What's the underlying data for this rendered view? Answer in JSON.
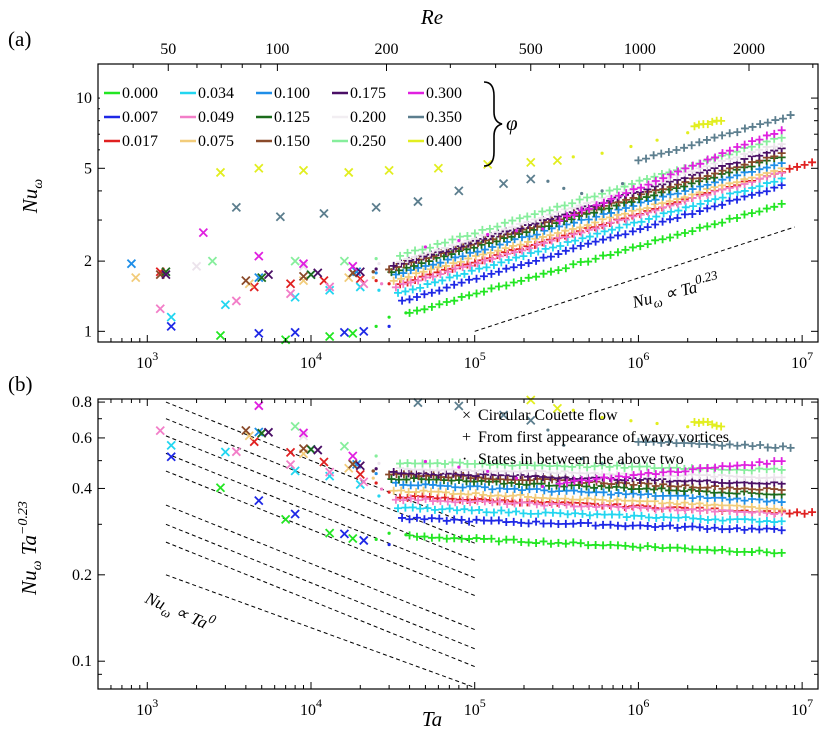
{
  "chart_data": [
    {
      "panel": "(a)",
      "type": "scatter",
      "xlabel_top": "Re",
      "ylabel": "Nu_ω",
      "xscale": "log",
      "yscale": "log",
      "xlim": [
        500,
        12500000
      ],
      "ylim": [
        0.9,
        14
      ],
      "x_top_ticks": [
        50,
        100,
        200,
        500,
        1000,
        2000
      ],
      "x_ticks": [
        1000,
        10000,
        100000,
        1000000,
        10000000
      ],
      "y_ticks": [
        1,
        2,
        5,
        10
      ],
      "legend": {
        "placement": "top-left",
        "entries": [
          {
            "label": "0.000",
            "color": "#22e622"
          },
          {
            "label": "0.034",
            "color": "#22d6f0"
          },
          {
            "label": "0.100",
            "color": "#1e8ee8"
          },
          {
            "label": "0.175",
            "color": "#4a0f66"
          },
          {
            "label": "0.300",
            "color": "#e020e0"
          },
          {
            "label": "0.007",
            "color": "#1e28e6"
          },
          {
            "label": "0.049",
            "color": "#f27ec8"
          },
          {
            "label": "0.125",
            "color": "#1b6b1b"
          },
          {
            "label": "0.200",
            "color": "#f2eef2"
          },
          {
            "label": "0.350",
            "color": "#5c7e8e"
          },
          {
            "label": "0.017",
            "color": "#e02020"
          },
          {
            "label": "0.075",
            "color": "#f2cc7a"
          },
          {
            "label": "0.150",
            "color": "#8a4a2a"
          },
          {
            "label": "0.250",
            "color": "#86ee9c"
          },
          {
            "label": "0.400",
            "color": "#e2ee20"
          }
        ],
        "brace_label": "φ"
      },
      "reference_line": {
        "label_base": "Nu",
        "label_sub": "ω",
        "label_mid": " ∝ Ta",
        "label_sup": "0.23",
        "x": [
          100000,
          9000000
        ],
        "y": [
          1.0,
          2.8
        ]
      },
      "series": [
        {
          "phi": "0.000",
          "color": "#22e622",
          "cc": [
            [
              2800,
              0.96
            ],
            [
              7000,
              0.92
            ],
            [
              13000,
              0.95
            ],
            [
              18000,
              0.98
            ]
          ],
          "between": [
            [
              25000,
              1.05
            ],
            [
              30000,
              1.15
            ],
            [
              38000,
              1.2
            ]
          ],
          "wavy_x": [
            40000,
            7500000
          ],
          "wavy_y": [
            1.2,
            3.5
          ]
        },
        {
          "phi": "0.007",
          "color": "#1e28e6",
          "cc": [
            [
              1400,
              1.05
            ],
            [
              4800,
              0.98
            ],
            [
              8000,
              0.99
            ],
            [
              16000,
              0.99
            ],
            [
              21000,
              1.0
            ]
          ],
          "between": [
            [
              30000,
              1.05
            ]
          ],
          "wavy_x": [
            36000,
            7500000
          ],
          "wavy_y": [
            1.35,
            4.2
          ]
        },
        {
          "phi": "0.017",
          "color": "#e02020",
          "cc": [
            [
              1200,
              1.8
            ],
            [
              4500,
              1.55
            ],
            [
              7500,
              1.6
            ],
            [
              12000,
              1.65
            ],
            [
              20000,
              1.68
            ]
          ],
          "between": [
            [
              25000,
              1.65
            ],
            [
              30000,
              1.6
            ]
          ],
          "wavy_x": [
            35000,
            11500000
          ],
          "wavy_y": [
            1.6,
            5.3
          ]
        },
        {
          "phi": "0.034",
          "color": "#22d6f0",
          "cc": [
            [
              1400,
              1.15
            ],
            [
              3000,
              1.3
            ],
            [
              8000,
              1.4
            ],
            [
              13000,
              1.5
            ],
            [
              20000,
              1.55
            ]
          ],
          "between": [
            [
              26000,
              1.5
            ]
          ],
          "wavy_x": [
            34000,
            7500000
          ],
          "wavy_y": [
            1.45,
            4.5
          ]
        },
        {
          "phi": "0.049",
          "color": "#f27ec8",
          "cc": [
            [
              1200,
              1.25
            ],
            [
              3500,
              1.35
            ],
            [
              7500,
              1.45
            ],
            [
              13000,
              1.55
            ],
            [
              21000,
              1.6
            ]
          ],
          "between": [
            [
              27000,
              1.6
            ]
          ],
          "wavy_x": [
            33000,
            7500000
          ],
          "wavy_y": [
            1.55,
            4.8
          ]
        },
        {
          "phi": "0.075",
          "color": "#f2cc7a",
          "cc": [
            [
              850,
              1.7
            ],
            [
              4200,
              1.6
            ],
            [
              9000,
              1.65
            ],
            [
              17000,
              1.7
            ]
          ],
          "between": [
            [
              24000,
              1.7
            ]
          ],
          "wavy_x": [
            32000,
            7500000
          ],
          "wavy_y": [
            1.65,
            5.0
          ]
        },
        {
          "phi": "0.100",
          "color": "#1e8ee8",
          "cc": [
            [
              800,
              1.95
            ],
            [
              4800,
              1.7
            ],
            [
              10000,
              1.75
            ],
            [
              19000,
              1.8
            ]
          ],
          "between": [
            [
              25000,
              1.78
            ]
          ],
          "wavy_x": [
            33000,
            7500000
          ],
          "wavy_y": [
            1.75,
            5.3
          ]
        },
        {
          "phi": "0.125",
          "color": "#1b6b1b",
          "cc": [
            [
              1300,
              1.8
            ],
            [
              5000,
              1.7
            ],
            [
              10000,
              1.75
            ],
            [
              18000,
              1.78
            ]
          ],
          "between": [
            [
              24000,
              1.8
            ]
          ],
          "wavy_x": [
            31000,
            7500000
          ],
          "wavy_y": [
            1.8,
            5.6
          ]
        },
        {
          "phi": "0.150",
          "color": "#8a4a2a",
          "cc": [
            [
              1200,
              1.75
            ],
            [
              4000,
              1.65
            ],
            [
              9000,
              1.72
            ],
            [
              18000,
              1.78
            ]
          ],
          "between": [
            [
              24000,
              1.8
            ]
          ],
          "wavy_x": [
            30000,
            7500000
          ],
          "wavy_y": [
            1.85,
            5.8
          ]
        },
        {
          "phi": "0.175",
          "color": "#4a0f66",
          "cc": [
            [
              1300,
              1.75
            ],
            [
              5500,
              1.75
            ],
            [
              11000,
              1.78
            ],
            [
              20000,
              1.8
            ]
          ],
          "between": [
            [
              25000,
              1.85
            ]
          ],
          "wavy_x": [
            32000,
            7500000
          ],
          "wavy_y": [
            1.9,
            6.1
          ]
        },
        {
          "phi": "0.200",
          "color": "#ece4ec",
          "cc": [
            [
              2000,
              1.9
            ],
            [
              9000,
              1.9
            ]
          ],
          "between": [
            [
              26000,
              1.95
            ]
          ],
          "wavy_x": [
            35000,
            7500000
          ],
          "wavy_y": [
            2.0,
            6.4
          ]
        },
        {
          "phi": "0.250",
          "color": "#86ee9c",
          "cc": [
            [
              2500,
              2.0
            ],
            [
              8000,
              2.0
            ],
            [
              16000,
              2.0
            ]
          ],
          "between": [
            [
              25000,
              2.05
            ]
          ],
          "wavy_x": [
            35000,
            7500000
          ],
          "wavy_y": [
            2.1,
            6.8
          ]
        },
        {
          "phi": "0.300",
          "color": "#e020e0",
          "cc": [
            [
              2200,
              2.65
            ],
            [
              4800,
              2.1
            ],
            [
              9000,
              1.95
            ],
            [
              18000,
              1.9
            ]
          ],
          "between": [
            [
              50000,
              2.3
            ],
            [
              80000,
              2.45
            ],
            [
              120000,
              2.6
            ],
            [
              180000,
              2.7
            ],
            [
              260000,
              2.75
            ]
          ],
          "wavy_x": [
            330000,
            7500000
          ],
          "wavy_y": [
            3.0,
            7.3
          ]
        },
        {
          "phi": "0.350",
          "color": "#5c7e8e",
          "cc": [
            [
              3500,
              3.4
            ],
            [
              6500,
              3.1
            ],
            [
              12000,
              3.2
            ],
            [
              25000,
              3.4
            ],
            [
              45000,
              3.6
            ],
            [
              80000,
              4.0
            ],
            [
              150000,
              4.3
            ],
            [
              220000,
              4.5
            ]
          ],
          "between": [
            [
              280000,
              4.4
            ],
            [
              350000,
              4.1
            ],
            [
              450000,
              3.9
            ],
            [
              600000,
              4.0
            ],
            [
              800000,
              4.3
            ]
          ],
          "wavy_x": [
            1000000,
            8500000
          ],
          "wavy_y": [
            5.4,
            8.4
          ]
        },
        {
          "phi": "0.400",
          "color": "#e2ee20",
          "cc": [
            [
              2800,
              4.8
            ],
            [
              4800,
              5.0
            ],
            [
              9000,
              4.9
            ],
            [
              17000,
              4.8
            ],
            [
              30000,
              4.9
            ],
            [
              60000,
              5.0
            ],
            [
              120000,
              5.2
            ],
            [
              220000,
              5.3
            ],
            [
              320000,
              5.4
            ]
          ],
          "between": [
            [
              400000,
              5.6
            ],
            [
              600000,
              5.8
            ],
            [
              900000,
              6.2
            ],
            [
              1300000,
              6.6
            ],
            [
              2000000,
              7.1
            ]
          ],
          "wavy_x": [
            2200000,
            3200000
          ],
          "wavy_y": [
            7.6,
            8.0
          ]
        }
      ]
    },
    {
      "panel": "(b)",
      "type": "scatter",
      "xlabel": "Ta",
      "ylabel": "Nu_ω Ta^−0.23",
      "xscale": "log",
      "yscale": "log",
      "xlim": [
        500,
        12500000
      ],
      "ylim": [
        0.08,
        0.82
      ],
      "x_ticks": [
        1000,
        10000,
        100000,
        1000000,
        10000000
      ],
      "y_ticks": [
        0.1,
        0.2,
        0.4,
        0.6,
        0.8
      ],
      "marker_legend": [
        {
          "symbol": "×",
          "label": "Circular Couette flow"
        },
        {
          "symbol": "+",
          "label": "From first appearance of wavy vortices"
        },
        {
          "symbol": "·",
          "label": "States in between the above two"
        }
      ],
      "reference_line_label": {
        "base": "Nu",
        "sub": "ω",
        "mid": " ∝ Ta",
        "sup": "0"
      }
    }
  ]
}
